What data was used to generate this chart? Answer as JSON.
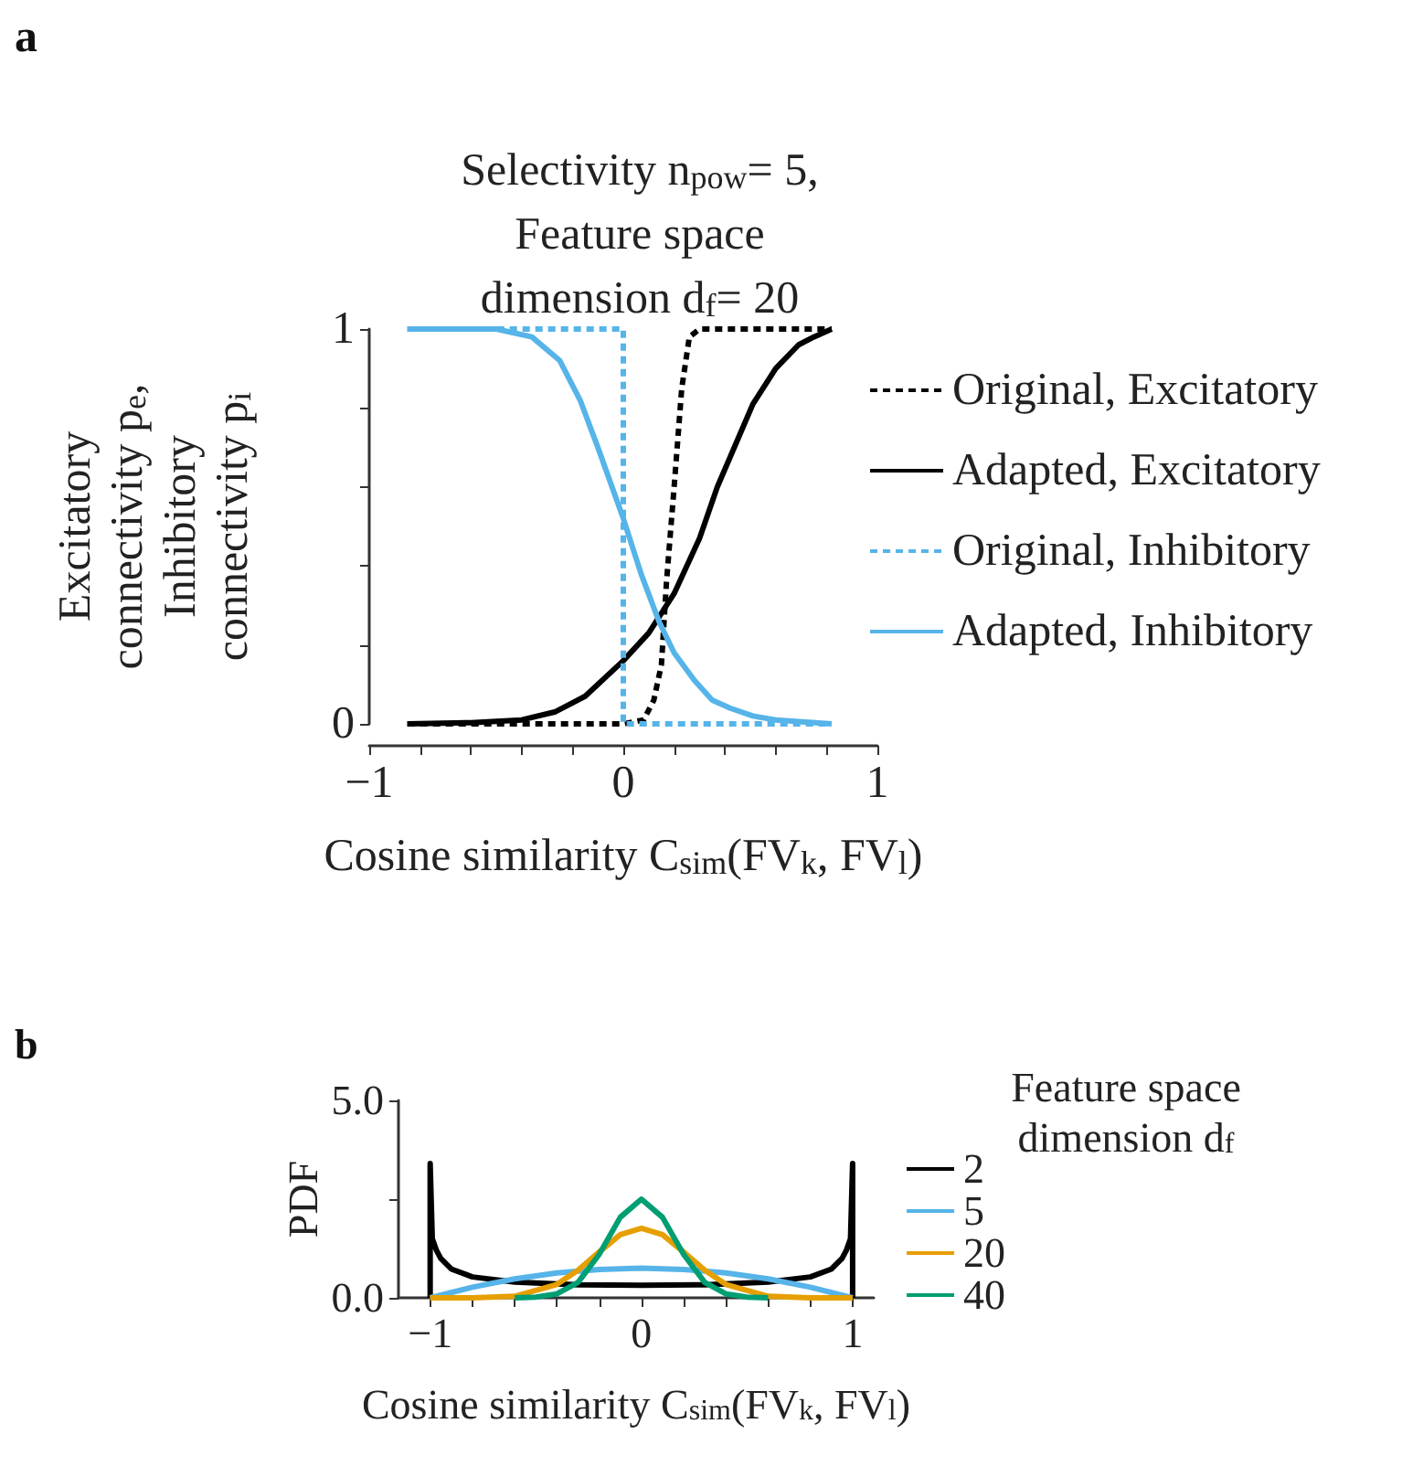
{
  "chart_data": [
    {
      "type": "line",
      "title": "Selectivity n$_{pow}$= 5,\nFeature space\ndimension d$_{f}$= 20",
      "xlabel": "Cosine similarity C$_{sim}$(FV$_{k}$, FV$_{l}$)",
      "ylabel": "Excitatory\nconnectivity p$_{e}$,\nInhibitory\nconnectivity p$_{i}$",
      "annotations": [
        "a"
      ],
      "xlim": [
        -1,
        1
      ],
      "ylim": [
        0,
        1
      ],
      "xticks": [
        {
          "value": -1,
          "label": "−1"
        },
        {
          "value": -0.8,
          "label": null
        },
        {
          "value": -0.6,
          "label": null
        },
        {
          "value": -0.4,
          "label": null
        },
        {
          "value": -0.2,
          "label": null
        },
        {
          "value": 0,
          "label": "0"
        },
        {
          "value": 0.2,
          "label": null
        },
        {
          "value": 0.4,
          "label": null
        },
        {
          "value": 0.6,
          "label": null
        },
        {
          "value": 0.8,
          "label": null
        },
        {
          "value": 1,
          "label": "1"
        }
      ],
      "yticks": [
        {
          "value": 0,
          "label": "0"
        },
        {
          "value": 0.2,
          "label": null
        },
        {
          "value": 0.4,
          "label": null
        },
        {
          "value": 0.6,
          "label": null
        },
        {
          "value": 0.8,
          "label": null
        },
        {
          "value": 1,
          "label": "1"
        }
      ],
      "grid": false,
      "legend": "right",
      "marker": "none",
      "series": [
        {
          "name": "Original, Excitatory",
          "color": "#000000",
          "line_style": "dashed",
          "x": [
            -0.85,
            0,
            0.08,
            0.12,
            0.15,
            0.17,
            0.2,
            0.23,
            0.26,
            0.3,
            0.82
          ],
          "values": [
            0,
            0,
            0.01,
            0.06,
            0.15,
            0.36,
            0.6,
            0.85,
            0.98,
            1,
            1
          ]
        },
        {
          "name": "Adapted, Excitatory",
          "color": "#000000",
          "line_style": "solid",
          "x": [
            -0.85,
            -0.6,
            -0.4,
            -0.27,
            -0.15,
            0,
            0.1,
            0.2,
            0.3,
            0.37,
            0.45,
            0.51,
            0.6,
            0.69,
            0.75,
            0.82
          ],
          "values": [
            0,
            0.003,
            0.01,
            0.03,
            0.07,
            0.16,
            0.23,
            0.33,
            0.47,
            0.6,
            0.72,
            0.81,
            0.9,
            0.96,
            0.98,
            1
          ]
        },
        {
          "name": "Original, Inhibitory",
          "color": "#56b4e9",
          "line_style": "dashed",
          "x": [
            -0.85,
            0,
            0,
            0.82
          ],
          "values": [
            1,
            1,
            0,
            0
          ]
        },
        {
          "name": "Adapted, Inhibitory",
          "color": "#56b4e9",
          "line_style": "solid",
          "x": [
            -0.85,
            -0.5,
            -0.36,
            -0.25,
            -0.17,
            -0.1,
            0,
            0.07,
            0.14,
            0.2,
            0.28,
            0.35,
            0.42,
            0.51,
            0.6,
            0.82
          ],
          "values": [
            1,
            1,
            0.98,
            0.92,
            0.82,
            0.7,
            0.52,
            0.38,
            0.26,
            0.18,
            0.11,
            0.06,
            0.04,
            0.02,
            0.01,
            0
          ]
        }
      ]
    },
    {
      "type": "line",
      "xlabel": "Cosine similarity C$_{sim}$(FV$_{k}$, FV$_{l}$)",
      "ylabel": "PDF",
      "legend_title": "Feature space\ndimension d$_{f}$",
      "annotations": [
        "b"
      ],
      "xlim": [
        -1.15,
        1.1
      ],
      "ylim": [
        0,
        5
      ],
      "xticks": [
        {
          "value": -1,
          "label": "−1"
        },
        {
          "value": -0.8,
          "label": null
        },
        {
          "value": -0.6,
          "label": null
        },
        {
          "value": -0.4,
          "label": null
        },
        {
          "value": -0.2,
          "label": null
        },
        0,
        {
          "value": 0.2,
          "label": null
        },
        {
          "value": 0.4,
          "label": null
        },
        {
          "value": 0.6,
          "label": null
        },
        {
          "value": 0.8,
          "label": null
        },
        1
      ],
      "yticks": [
        {
          "value": 0,
          "label": "0.0"
        },
        {
          "value": 2.5,
          "label": null
        },
        {
          "value": 5,
          "label": "5.0"
        }
      ],
      "grid": false,
      "legend": "right",
      "marker": "none",
      "line_style": "solid",
      "series": [
        {
          "name": "2",
          "color": "#000000",
          "x": [
            -1,
            -1,
            -0.99,
            -0.97,
            -0.95,
            -0.9,
            -0.8,
            -0.6,
            -0.3,
            0,
            0.3,
            0.6,
            0.8,
            0.9,
            0.95,
            0.97,
            0.99,
            1,
            1
          ],
          "values": [
            0,
            3.4,
            1.5,
            1.2,
            1.0,
            0.73,
            0.53,
            0.4,
            0.33,
            0.32,
            0.33,
            0.4,
            0.53,
            0.73,
            1.0,
            1.2,
            1.5,
            3.4,
            0
          ]
        },
        {
          "name": "5",
          "color": "#56b4e9",
          "x": [
            -1,
            -0.8,
            -0.6,
            -0.4,
            -0.2,
            0,
            0.2,
            0.4,
            0.6,
            0.8,
            1
          ],
          "values": [
            0,
            0.27,
            0.48,
            0.63,
            0.72,
            0.75,
            0.72,
            0.63,
            0.48,
            0.27,
            0
          ]
        },
        {
          "name": "20",
          "color": "#e69f00",
          "x": [
            -1,
            -0.8,
            -0.6,
            -0.4,
            -0.3,
            -0.2,
            -0.1,
            0,
            0.1,
            0.2,
            0.3,
            0.4,
            0.6,
            0.8,
            1
          ],
          "values": [
            0,
            0,
            0.04,
            0.34,
            0.7,
            1.16,
            1.6,
            1.76,
            1.6,
            1.16,
            0.7,
            0.34,
            0.04,
            0,
            0
          ]
        },
        {
          "name": "40",
          "color": "#009e73",
          "x": [
            -0.6,
            -0.5,
            -0.4,
            -0.3,
            -0.2,
            -0.1,
            0,
            0.1,
            0.2,
            0.3,
            0.4,
            0.5,
            0.6
          ],
          "values": [
            0,
            0.02,
            0.1,
            0.39,
            1.1,
            2.04,
            2.5,
            2.04,
            1.1,
            0.39,
            0.1,
            0.02,
            0
          ]
        }
      ]
    }
  ]
}
